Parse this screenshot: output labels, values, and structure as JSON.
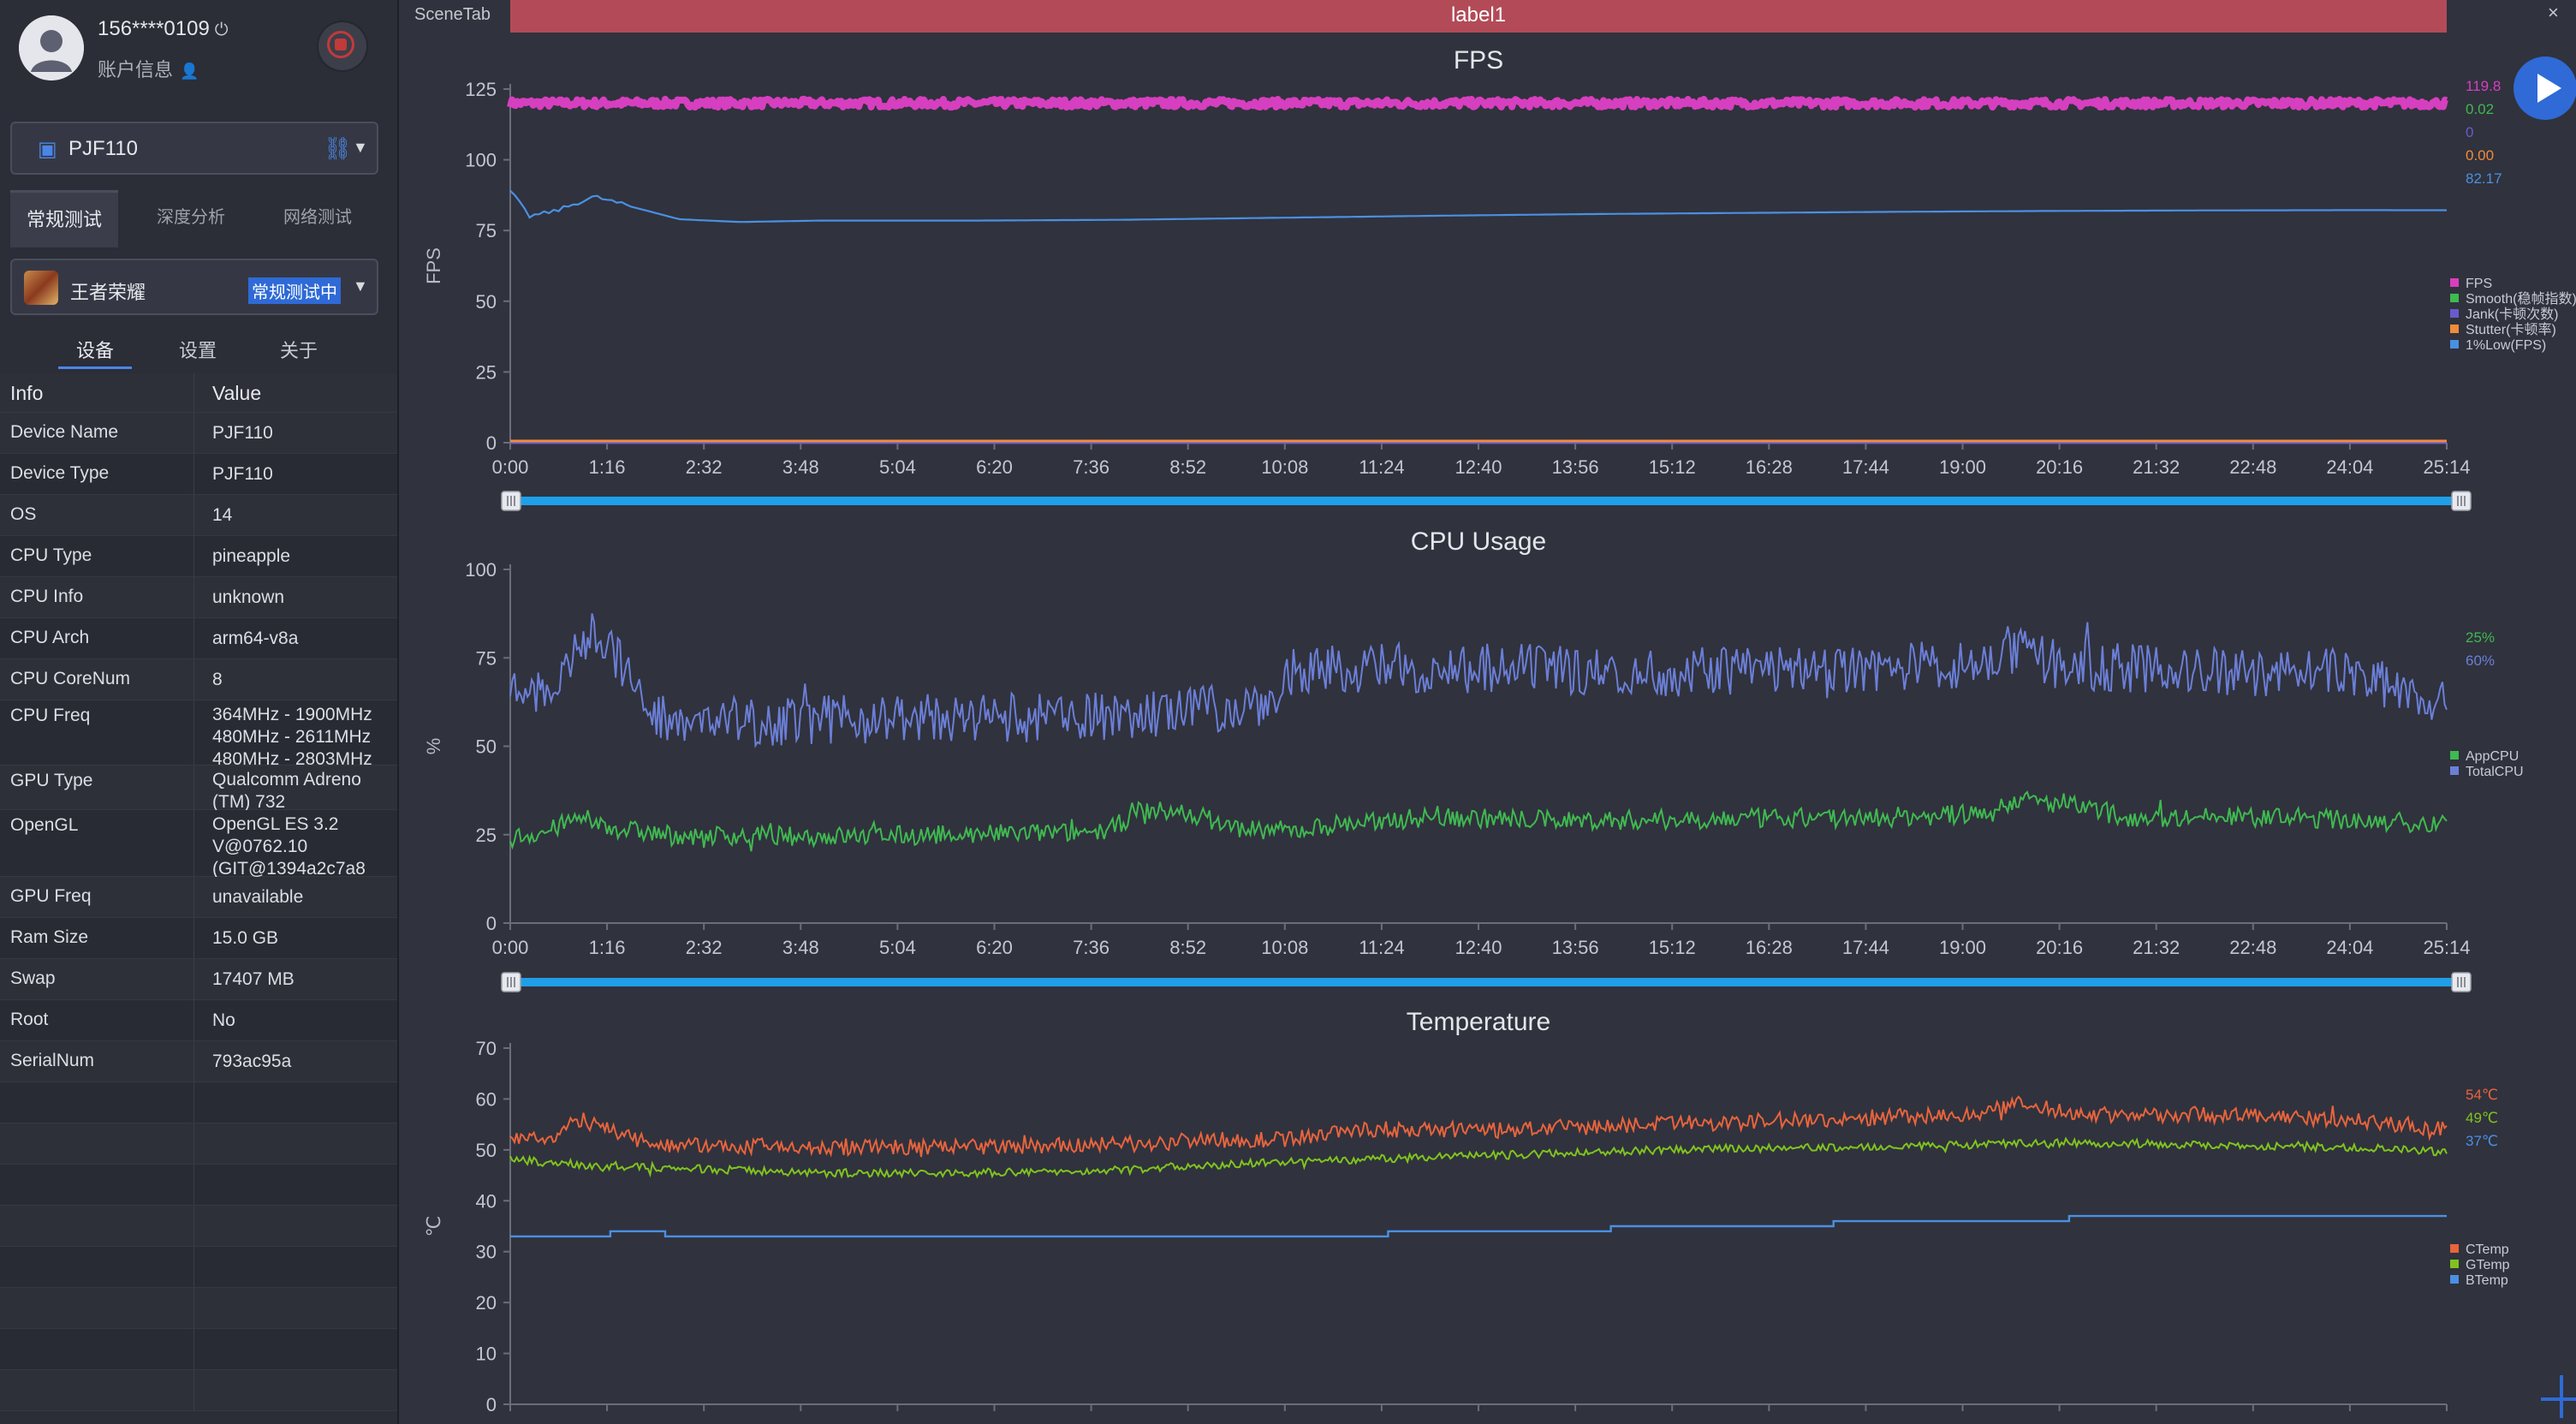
{
  "user": {
    "phone": "156****0109",
    "power_icon": "power-icon",
    "info_label": "账户信息",
    "info_icon": "user-settings-icon"
  },
  "device": {
    "name": "PJF110",
    "icon": "android-icon"
  },
  "mode_tabs": [
    {
      "label": "常规测试",
      "active": true
    },
    {
      "label": "深度分析",
      "active": false
    },
    {
      "label": "网络测试",
      "active": false
    }
  ],
  "app": {
    "name": "王者荣耀",
    "status": "常规测试中"
  },
  "sub_tabs": [
    {
      "label": "设备",
      "active": true
    },
    {
      "label": "设置",
      "active": false
    },
    {
      "label": "关于",
      "active": false
    }
  ],
  "info_table": {
    "headers": [
      "Info",
      "Value"
    ],
    "rows": [
      {
        "key": "Device Name",
        "value": "PJF110"
      },
      {
        "key": "Device Type",
        "value": "PJF110"
      },
      {
        "key": "OS",
        "value": "14"
      },
      {
        "key": "CPU Type",
        "value": "pineapple"
      },
      {
        "key": "CPU Info",
        "value": "unknown"
      },
      {
        "key": "CPU Arch",
        "value": "arm64-v8a"
      },
      {
        "key": "CPU CoreNum",
        "value": "8"
      },
      {
        "key": "CPU Freq",
        "value": "364MHz - 1900MHz\n480MHz - 2611MHz\n480MHz - 2803MHz"
      },
      {
        "key": "GPU Type",
        "value": "Qualcomm Adreno\n(TM) 732"
      },
      {
        "key": "OpenGL",
        "value": "OpenGL ES 3.2\nV@0762.10\n(GIT@1394a2c7a8"
      },
      {
        "key": "GPU Freq",
        "value": "unavailable"
      },
      {
        "key": "Ram Size",
        "value": "15.0 GB"
      },
      {
        "key": "Swap",
        "value": "17407 MB"
      },
      {
        "key": "Root",
        "value": "No"
      },
      {
        "key": "SerialNum",
        "value": "793ac95a"
      },
      {
        "key": "",
        "value": ""
      },
      {
        "key": "",
        "value": ""
      },
      {
        "key": "",
        "value": ""
      },
      {
        "key": "",
        "value": ""
      },
      {
        "key": "",
        "value": ""
      },
      {
        "key": "",
        "value": ""
      },
      {
        "key": "",
        "value": ""
      },
      {
        "key": "",
        "value": ""
      }
    ]
  },
  "tabs": {
    "scene": "SceneTab",
    "label": "label1",
    "close": "×"
  },
  "chart_data": [
    {
      "type": "line",
      "title": "FPS",
      "ylabel": "FPS",
      "ylim": [
        0,
        125
      ],
      "yticks": [
        0,
        25,
        50,
        75,
        100,
        125
      ],
      "xticks": [
        "0:00",
        "1:16",
        "2:32",
        "3:48",
        "5:04",
        "6:20",
        "7:36",
        "8:52",
        "10:08",
        "11:24",
        "12:40",
        "13:56",
        "15:12",
        "16:28",
        "17:44",
        "19:00",
        "20:16",
        "21:32",
        "22:48",
        "24:04",
        "25:14"
      ],
      "series": [
        {
          "name": "FPS",
          "color": "#d63fbf",
          "current": "119.8",
          "pattern": "band",
          "base": 120,
          "amp": 1.4
        },
        {
          "name": "Smooth(稳帧指数)",
          "color": "#3fb950",
          "current": "0.02",
          "pattern": "flat",
          "base": 0.3
        },
        {
          "name": "Jank(卡顿次数)",
          "color": "#6a5acd",
          "current": "0",
          "pattern": "flat",
          "base": 0
        },
        {
          "name": "Stutter(卡顿率)",
          "color": "#f08c3a",
          "current": "0.00",
          "pattern": "flat",
          "base": 0.6
        },
        {
          "name": "1%Low(FPS)",
          "color": "#4a90e2",
          "current": "82.17",
          "pattern": "curve",
          "points": [
            [
              0,
              89
            ],
            [
              0.25,
              80
            ],
            [
              0.6,
              82
            ],
            [
              1.1,
              87
            ],
            [
              1.5,
              84
            ],
            [
              2.2,
              79
            ],
            [
              3,
              78
            ],
            [
              4,
              78.5
            ],
            [
              6,
              78.5
            ],
            [
              8,
              78.8
            ],
            [
              10,
              79.5
            ],
            [
              12,
              80.2
            ],
            [
              14,
              80.8
            ],
            [
              16,
              81.2
            ],
            [
              18,
              81.6
            ],
            [
              20,
              81.9
            ],
            [
              22,
              82.1
            ],
            [
              24,
              82.2
            ],
            [
              25.23,
              82.17
            ]
          ]
        }
      ]
    },
    {
      "type": "line",
      "title": "CPU Usage",
      "ylabel": "%",
      "ylim": [
        0,
        100
      ],
      "yticks": [
        0,
        25,
        50,
        75,
        100
      ],
      "xticks": [
        "0:00",
        "1:16",
        "2:32",
        "3:48",
        "5:04",
        "6:20",
        "7:36",
        "8:52",
        "10:08",
        "11:24",
        "12:40",
        "13:56",
        "15:12",
        "16:28",
        "17:44",
        "19:00",
        "20:16",
        "21:32",
        "22:48",
        "24:04",
        "25:14"
      ],
      "series": [
        {
          "name": "AppCPU",
          "color": "#3fb950",
          "current": "25%",
          "pattern": "noisy",
          "points": [
            [
              0,
              24
            ],
            [
              0.5,
              26
            ],
            [
              0.9,
              30
            ],
            [
              1.3,
              27
            ],
            [
              2,
              25
            ],
            [
              4,
              24.5
            ],
            [
              6,
              25
            ],
            [
              7,
              25.5
            ],
            [
              7.8,
              26
            ],
            [
              8.2,
              32
            ],
            [
              8.9,
              31
            ],
            [
              9.4,
              27
            ],
            [
              10.2,
              26
            ],
            [
              10.8,
              28
            ],
            [
              12,
              30
            ],
            [
              14,
              29
            ],
            [
              16,
              29.5
            ],
            [
              18,
              30
            ],
            [
              19.3,
              31
            ],
            [
              19.6,
              35
            ],
            [
              20.4,
              33
            ],
            [
              21,
              30
            ],
            [
              23,
              30
            ],
            [
              25.23,
              28
            ]
          ],
          "amp": 2.8
        },
        {
          "name": "TotalCPU",
          "color": "#6b7fd7",
          "current": "60%",
          "pattern": "noisy",
          "points": [
            [
              0,
              66
            ],
            [
              0.6,
              64
            ],
            [
              0.8,
              76
            ],
            [
              1.1,
              83
            ],
            [
              1.5,
              72
            ],
            [
              1.8,
              59
            ],
            [
              3,
              57
            ],
            [
              5,
              58
            ],
            [
              7,
              58
            ],
            [
              8.5,
              59
            ],
            [
              9.4,
              61
            ],
            [
              10,
              64
            ],
            [
              10.2,
              71
            ],
            [
              11,
              72
            ],
            [
              13,
              72
            ],
            [
              15,
              71
            ],
            [
              17,
              72
            ],
            [
              19,
              73
            ],
            [
              19.5,
              77
            ],
            [
              20.2,
              73
            ],
            [
              22,
              71
            ],
            [
              24,
              71
            ],
            [
              25.23,
              62
            ]
          ],
          "amp": 7
        }
      ]
    },
    {
      "type": "line",
      "title": "Temperature",
      "ylabel": "℃",
      "ylim": [
        0,
        70
      ],
      "yticks": [
        0,
        10,
        20,
        30,
        40,
        50,
        60,
        70
      ],
      "xticks": [
        "0:00",
        "1:16",
        "2:32",
        "3:48",
        "5:04",
        "6:20",
        "7:36",
        "8:52",
        "10:08",
        "11:24",
        "12:40",
        "13:56",
        "15:12",
        "16:28",
        "17:44",
        "19:00",
        "20:16",
        "21:32",
        "22:48",
        "24:04",
        "25:14"
      ],
      "series": [
        {
          "name": "CTemp",
          "color": "#e8643c",
          "current": "54℃",
          "pattern": "noisy",
          "points": [
            [
              0,
              53
            ],
            [
              0.5,
              52
            ],
            [
              0.9,
              56
            ],
            [
              1.4,
              53
            ],
            [
              2,
              51
            ],
            [
              4,
              50.5
            ],
            [
              6,
              50.5
            ],
            [
              8,
              51
            ],
            [
              9,
              52
            ],
            [
              10,
              52
            ],
            [
              11,
              54
            ],
            [
              13,
              54
            ],
            [
              15,
              55
            ],
            [
              17,
              56
            ],
            [
              19,
              57
            ],
            [
              19.6,
              59
            ],
            [
              20.5,
              57
            ],
            [
              22,
              57
            ],
            [
              24,
              56
            ],
            [
              25.23,
              54
            ]
          ],
          "amp": 1.6
        },
        {
          "name": "GTemp",
          "color": "#7fc41e",
          "current": "49℃",
          "pattern": "noisy",
          "points": [
            [
              0,
              48
            ],
            [
              1,
              47
            ],
            [
              2,
              46.5
            ],
            [
              4,
              45.5
            ],
            [
              6,
              45.5
            ],
            [
              8,
              46
            ],
            [
              9,
              47
            ],
            [
              11,
              48
            ],
            [
              13,
              49
            ],
            [
              15,
              50
            ],
            [
              17,
              50.5
            ],
            [
              19,
              51
            ],
            [
              20,
              51.5
            ],
            [
              22,
              51
            ],
            [
              24,
              50.5
            ],
            [
              25.23,
              49.5
            ]
          ],
          "amp": 0.8
        },
        {
          "name": "BTemp",
          "color": "#4a90e2",
          "current": "37℃",
          "pattern": "steps",
          "points": [
            [
              0,
              33
            ],
            [
              1.3,
              34
            ],
            [
              2,
              33
            ],
            [
              11.4,
              34
            ],
            [
              14.3,
              35
            ],
            [
              17.2,
              36
            ],
            [
              20.3,
              37
            ],
            [
              25.23,
              37
            ]
          ]
        }
      ]
    }
  ],
  "icons": {
    "play": "play-icon",
    "add": "plus-icon",
    "stop": "stop-icon"
  }
}
